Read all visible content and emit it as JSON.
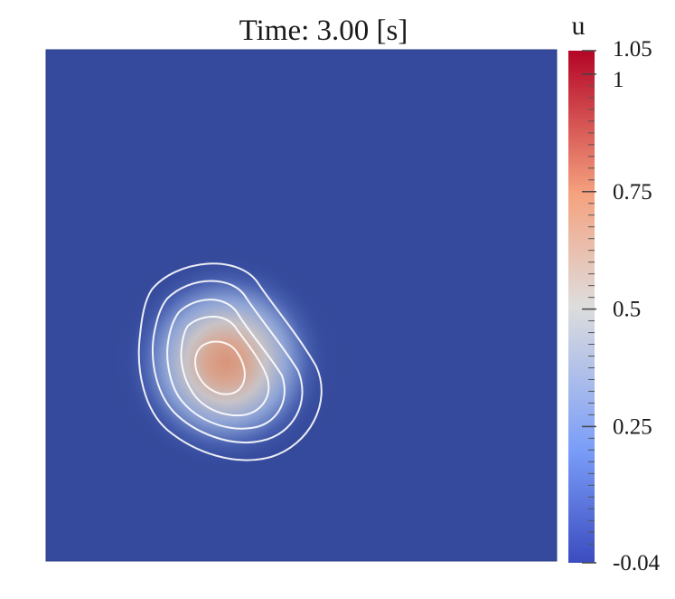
{
  "chart_data": {
    "type": "heatmap",
    "title": "Time: 3.00 [s]",
    "field": {
      "name": "u",
      "background_value": -0.04,
      "peak_value": 0.82,
      "peak_location": "center-left, slightly below middle",
      "shape": "kidney-shaped blob elongated from upper-left to lower-right"
    },
    "contour_color": "#ffffff",
    "contour_count": 5,
    "colorbar": {
      "title": "u",
      "range": [
        -0.04,
        1.05
      ],
      "ticks": [
        {
          "value": 1.05,
          "label": "1.05"
        },
        {
          "value": 1.0,
          "label": "1"
        },
        {
          "value": 0.75,
          "label": "0.75"
        },
        {
          "value": 0.5,
          "label": "0.5"
        },
        {
          "value": 0.25,
          "label": "0.25"
        },
        {
          "value": -0.04,
          "label": "-0.04"
        }
      ],
      "colormap": [
        {
          "value": -0.04,
          "color": "#3b4cc0"
        },
        {
          "value": 0.2,
          "color": "#7a9df8"
        },
        {
          "value": 0.5,
          "color": "#dddddd"
        },
        {
          "value": 0.75,
          "color": "#f5a27f"
        },
        {
          "value": 1.05,
          "color": "#b40426"
        }
      ]
    },
    "colors": {
      "background_field": "#354a9c",
      "text": "#1a1a1a"
    }
  }
}
